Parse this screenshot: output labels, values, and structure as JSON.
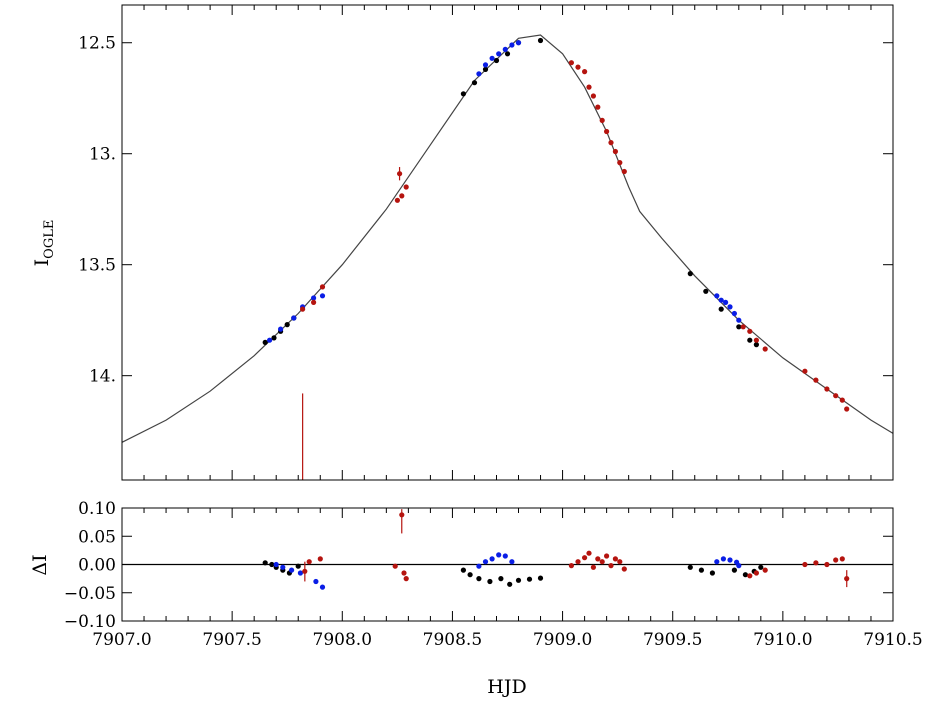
{
  "chart_data": [
    {
      "panel": "top",
      "type": "scatter",
      "xlabel": "",
      "ylabel": "I",
      "ylabel_sub": "OGLE",
      "xlim": [
        7907.0,
        7910.5
      ],
      "ylim": [
        14.47,
        12.33
      ],
      "y_inverted": true,
      "yticks": [
        12.5,
        13.0,
        13.5,
        14.0
      ],
      "ytick_labels": [
        "12.5",
        "13.",
        "13.5",
        "14."
      ],
      "model_curve": [
        [
          7907.0,
          14.3
        ],
        [
          7907.2,
          14.2
        ],
        [
          7907.4,
          14.07
        ],
        [
          7907.6,
          13.91
        ],
        [
          7907.8,
          13.72
        ],
        [
          7908.0,
          13.5
        ],
        [
          7908.2,
          13.25
        ],
        [
          7908.4,
          12.96
        ],
        [
          7908.6,
          12.67
        ],
        [
          7908.8,
          12.48
        ],
        [
          7908.9,
          12.465
        ],
        [
          7909.0,
          12.55
        ],
        [
          7909.1,
          12.7
        ],
        [
          7909.2,
          12.9
        ],
        [
          7909.3,
          13.15
        ],
        [
          7909.35,
          13.26
        ],
        [
          7909.45,
          13.38
        ],
        [
          7909.6,
          13.55
        ],
        [
          7909.8,
          13.75
        ],
        [
          7910.0,
          13.92
        ],
        [
          7910.2,
          14.06
        ],
        [
          7910.4,
          14.2
        ],
        [
          7910.5,
          14.26
        ]
      ],
      "series": [
        {
          "color": "#000000",
          "points": [
            [
              7907.65,
              13.85
            ],
            [
              7907.69,
              13.83
            ],
            [
              7907.72,
              13.8
            ],
            [
              7907.75,
              13.77
            ],
            [
              7907.78,
              13.74
            ],
            [
              7908.55,
              12.73
            ],
            [
              7908.6,
              12.68
            ],
            [
              7908.65,
              12.62
            ],
            [
              7908.7,
              12.58
            ],
            [
              7908.75,
              12.55
            ],
            [
              7908.8,
              12.5
            ],
            [
              7908.9,
              12.49
            ],
            [
              7909.58,
              13.54
            ],
            [
              7909.65,
              13.62
            ],
            [
              7909.72,
              13.7
            ],
            [
              7909.8,
              13.78
            ],
            [
              7909.85,
              13.84
            ],
            [
              7909.88,
              13.86
            ]
          ]
        },
        {
          "color": "#0a1ee6",
          "points": [
            [
              7907.67,
              13.84
            ],
            [
              7907.72,
              13.79
            ],
            [
              7907.78,
              13.74
            ],
            [
              7907.82,
              13.69
            ],
            [
              7907.87,
              13.65
            ],
            [
              7907.91,
              13.64
            ],
            [
              7908.62,
              12.64
            ],
            [
              7908.65,
              12.6
            ],
            [
              7908.68,
              12.57
            ],
            [
              7908.71,
              12.55
            ],
            [
              7908.74,
              12.53
            ],
            [
              7908.77,
              12.51
            ],
            [
              7908.8,
              12.5
            ],
            [
              7909.7,
              13.64
            ],
            [
              7909.72,
              13.66
            ],
            [
              7909.74,
              13.67
            ],
            [
              7909.76,
              13.69
            ],
            [
              7909.78,
              13.72
            ],
            [
              7909.8,
              13.75
            ]
          ]
        },
        {
          "color": "#b5140f",
          "points": [
            [
              7907.82,
              13.7
            ],
            [
              7907.87,
              13.67
            ],
            [
              7907.91,
              13.6
            ],
            [
              7908.25,
              13.21
            ],
            [
              7908.27,
              13.19
            ],
            [
              7908.26,
              13.09
            ],
            [
              7908.29,
              13.15
            ],
            [
              7909.04,
              12.59
            ],
            [
              7909.07,
              12.61
            ],
            [
              7909.1,
              12.63
            ],
            [
              7909.12,
              12.7
            ],
            [
              7909.14,
              12.74
            ],
            [
              7909.16,
              12.79
            ],
            [
              7909.18,
              12.85
            ],
            [
              7909.2,
              12.9
            ],
            [
              7909.22,
              12.95
            ],
            [
              7909.24,
              12.99
            ],
            [
              7909.26,
              13.04
            ],
            [
              7909.28,
              13.08
            ],
            [
              7909.82,
              13.78
            ],
            [
              7909.85,
              13.8
            ],
            [
              7909.88,
              13.84
            ],
            [
              7909.92,
              13.88
            ],
            [
              7910.1,
              13.98
            ],
            [
              7910.15,
              14.02
            ],
            [
              7910.2,
              14.06
            ],
            [
              7910.24,
              14.09
            ],
            [
              7910.27,
              14.11
            ],
            [
              7910.29,
              14.15
            ]
          ]
        }
      ],
      "error_bars": [
        {
          "x": 7907.82,
          "y1": 14.08,
          "y2": 14.47,
          "color": "#b5140f"
        },
        {
          "x": 7908.26,
          "y1": 13.06,
          "y2": 13.12,
          "color": "#b5140f"
        }
      ]
    },
    {
      "panel": "bottom",
      "type": "scatter",
      "xlabel": "HJD",
      "ylabel": "ΔI",
      "xlim": [
        7907.0,
        7910.5
      ],
      "ylim": [
        -0.1,
        0.1
      ],
      "xticks": [
        7907.0,
        7907.5,
        7908.0,
        7908.5,
        7909.0,
        7909.5,
        7910.0,
        7910.5
      ],
      "xtick_labels": [
        "7907.0",
        "7907.5",
        "7908.0",
        "7908.5",
        "7909.0",
        "7909.5",
        "7910.0",
        "7910.5"
      ],
      "yticks": [
        0.1,
        0.05,
        0.0,
        -0.05,
        -0.1
      ],
      "ytick_labels": [
        "0.10",
        "0.05",
        "0.00",
        "−0.05",
        "−0.10"
      ],
      "zero_line": 0.0,
      "series": [
        {
          "color": "#000000",
          "points": [
            [
              7907.65,
              0.003
            ],
            [
              7907.68,
              0.0
            ],
            [
              7907.7,
              -0.005
            ],
            [
              7907.73,
              -0.01
            ],
            [
              7907.76,
              -0.015
            ],
            [
              7907.8,
              -0.003
            ],
            [
              7908.55,
              -0.01
            ],
            [
              7908.58,
              -0.018
            ],
            [
              7908.62,
              -0.025
            ],
            [
              7908.67,
              -0.03
            ],
            [
              7908.72,
              -0.025
            ],
            [
              7908.76,
              -0.035
            ],
            [
              7908.8,
              -0.028
            ],
            [
              7908.85,
              -0.026
            ],
            [
              7908.9,
              -0.024
            ],
            [
              7909.58,
              -0.005
            ],
            [
              7909.63,
              -0.01
            ],
            [
              7909.68,
              -0.015
            ],
            [
              7909.78,
              -0.01
            ],
            [
              7909.83,
              -0.018
            ],
            [
              7909.87,
              -0.012
            ],
            [
              7909.9,
              -0.005
            ]
          ]
        },
        {
          "color": "#0a1ee6",
          "points": [
            [
              7907.7,
              0.0
            ],
            [
              7907.73,
              -0.005
            ],
            [
              7907.77,
              -0.01
            ],
            [
              7907.81,
              -0.015
            ],
            [
              7907.88,
              -0.03
            ],
            [
              7907.91,
              -0.04
            ],
            [
              7908.62,
              -0.003
            ],
            [
              7908.65,
              0.005
            ],
            [
              7908.68,
              0.01
            ],
            [
              7908.71,
              0.017
            ],
            [
              7908.74,
              0.015
            ],
            [
              7908.77,
              0.005
            ],
            [
              7909.7,
              0.005
            ],
            [
              7909.73,
              0.01
            ],
            [
              7909.76,
              0.008
            ],
            [
              7909.79,
              0.004
            ],
            [
              7909.8,
              -0.002
            ]
          ]
        },
        {
          "color": "#b5140f",
          "points": [
            [
              7907.83,
              -0.012
            ],
            [
              7907.85,
              0.005
            ],
            [
              7907.9,
              0.01
            ],
            [
              7908.24,
              -0.003
            ],
            [
              7908.27,
              0.088
            ],
            [
              7908.28,
              -0.015
            ],
            [
              7908.29,
              -0.025
            ],
            [
              7909.04,
              -0.002
            ],
            [
              7909.07,
              0.005
            ],
            [
              7909.1,
              0.012
            ],
            [
              7909.12,
              0.02
            ],
            [
              7909.14,
              -0.005
            ],
            [
              7909.16,
              0.01
            ],
            [
              7909.18,
              0.005
            ],
            [
              7909.2,
              0.015
            ],
            [
              7909.22,
              -0.002
            ],
            [
              7909.24,
              0.01
            ],
            [
              7909.26,
              0.005
            ],
            [
              7909.28,
              -0.008
            ],
            [
              7909.85,
              -0.02
            ],
            [
              7909.88,
              -0.015
            ],
            [
              7909.92,
              -0.01
            ],
            [
              7910.1,
              0.0
            ],
            [
              7910.15,
              0.003
            ],
            [
              7910.2,
              0.0
            ],
            [
              7910.24,
              0.008
            ],
            [
              7910.27,
              0.01
            ],
            [
              7910.29,
              -0.025
            ]
          ]
        }
      ],
      "error_bars": [
        {
          "x": 7908.27,
          "y1": 0.055,
          "y2": 0.098,
          "color": "#b5140f"
        },
        {
          "x": 7907.83,
          "y1": -0.03,
          "y2": 0.005,
          "color": "#b5140f"
        },
        {
          "x": 7910.29,
          "y1": -0.04,
          "y2": -0.01,
          "color": "#b5140f"
        }
      ]
    }
  ]
}
